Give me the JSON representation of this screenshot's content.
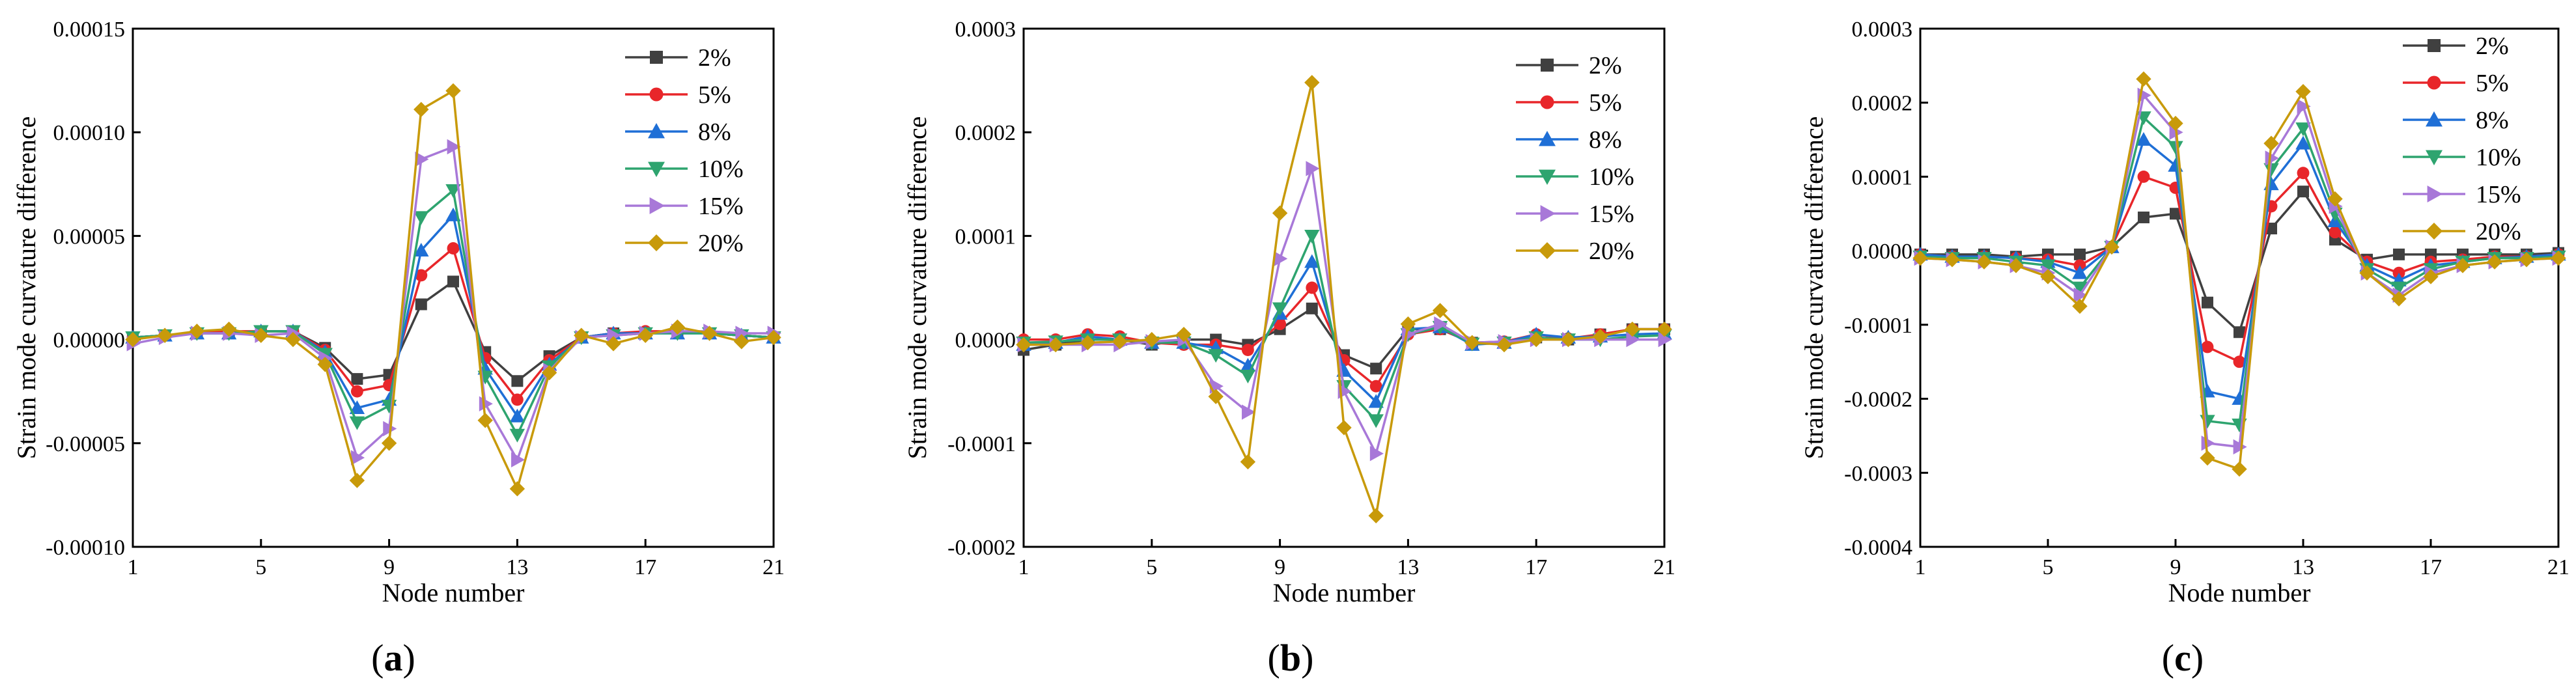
{
  "figure": {
    "panels": [
      "(a)",
      "(b)",
      "(c)"
    ]
  },
  "colors": {
    "2%": "#404040",
    "5%": "#e8262a",
    "8%": "#1f6fd6",
    "10%": "#2ea46f",
    "15%": "#a878d8",
    "20%": "#c89a0a"
  },
  "markers": {
    "2%": "square",
    "5%": "circle",
    "8%": "triangle-up",
    "10%": "triangle-down",
    "15%": "triangle-right",
    "20%": "diamond"
  },
  "chart_data": [
    {
      "type": "line",
      "panel_label": "(a)",
      "xlabel": "Node number",
      "ylabel": "Strain mode curvature difference",
      "xlim": [
        1,
        21
      ],
      "ylim": [
        -0.0001,
        0.00015
      ],
      "xticks": [
        1,
        5,
        9,
        13,
        17,
        21
      ],
      "yticks": [
        -0.0001,
        -5e-05,
        0,
        5e-05,
        0.0001,
        0.00015
      ],
      "ytick_labels": [
        "-0.00010",
        "-0.00005",
        "0.00000",
        "0.00005",
        "0.00010",
        "0.00015"
      ],
      "legend_position": "top-right",
      "x": [
        1,
        2,
        3,
        4,
        5,
        6,
        7,
        8,
        9,
        10,
        11,
        12,
        13,
        14,
        15,
        16,
        17,
        18,
        19,
        20,
        21
      ],
      "series": [
        {
          "name": "2%",
          "values": [
            1e-06,
            2e-06,
            3e-06,
            3e-06,
            4e-06,
            4e-06,
            -4e-06,
            -1.9e-05,
            -1.7e-05,
            1.7e-05,
            2.8e-05,
            -6e-06,
            -2e-05,
            -8e-06,
            1e-06,
            3e-06,
            3e-06,
            4e-06,
            3e-06,
            2e-06,
            1e-06
          ]
        },
        {
          "name": "5%",
          "values": [
            1e-06,
            2e-06,
            3e-06,
            4e-06,
            4e-06,
            4e-06,
            -5e-06,
            -2.5e-05,
            -2.2e-05,
            3.1e-05,
            4.4e-05,
            -9e-06,
            -2.9e-05,
            -1e-05,
            1e-06,
            3e-06,
            4e-06,
            4e-06,
            3e-06,
            2e-06,
            1e-06
          ]
        },
        {
          "name": "8%",
          "values": [
            1e-06,
            2e-06,
            3e-06,
            3e-06,
            4e-06,
            4e-06,
            -6e-06,
            -3.3e-05,
            -2.9e-05,
            4.3e-05,
            6e-05,
            -1.4e-05,
            -3.7e-05,
            -1.2e-05,
            1e-06,
            3e-06,
            3e-06,
            3e-06,
            3e-06,
            2e-06,
            1e-06
          ]
        },
        {
          "name": "10%",
          "values": [
            1e-06,
            2e-06,
            3e-06,
            3e-06,
            4e-06,
            4e-06,
            -7e-06,
            -4e-05,
            -3.2e-05,
            5.9e-05,
            7.2e-05,
            -1.8e-05,
            -4.6e-05,
            -1.3e-05,
            1e-06,
            2e-06,
            3e-06,
            3e-06,
            3e-06,
            2e-06,
            1e-06
          ]
        },
        {
          "name": "15%",
          "values": [
            -2e-06,
            1e-06,
            3e-06,
            3e-06,
            2e-06,
            3e-06,
            -9e-06,
            -5.7e-05,
            -4.3e-05,
            8.7e-05,
            9.3e-05,
            -3.1e-05,
            -5.8e-05,
            -1.5e-05,
            1e-06,
            2e-06,
            3e-06,
            4e-06,
            4e-06,
            3e-06,
            3e-06
          ]
        },
        {
          "name": "20%",
          "values": [
            0.0,
            2e-06,
            4e-06,
            5e-06,
            2e-06,
            0.0,
            -1.2e-05,
            -6.8e-05,
            -5e-05,
            0.000111,
            0.00012,
            -3.9e-05,
            -7.2e-05,
            -1.6e-05,
            2e-06,
            -2e-06,
            2e-06,
            6e-06,
            3e-06,
            -1e-06,
            1e-06
          ]
        }
      ]
    },
    {
      "type": "line",
      "panel_label": "(b)",
      "xlabel": "Node number",
      "ylabel": "Strain mode curvature difference",
      "xlim": [
        1,
        21
      ],
      "ylim": [
        -0.0002,
        0.0003
      ],
      "xticks": [
        1,
        5,
        9,
        13,
        17,
        21
      ],
      "yticks": [
        -0.0002,
        -0.0001,
        0,
        0.0001,
        0.0002,
        0.0003
      ],
      "ytick_labels": [
        "-0.0002",
        "-0.0001",
        "0.0000",
        "0.0001",
        "0.0002",
        "0.0003"
      ],
      "legend_position": "top-right",
      "x": [
        1,
        2,
        3,
        4,
        5,
        6,
        7,
        8,
        9,
        10,
        11,
        12,
        13,
        14,
        15,
        16,
        17,
        18,
        19,
        20,
        21
      ],
      "series": [
        {
          "name": "2%",
          "values": [
            -1e-05,
            -5e-06,
            0.0,
            0.0,
            -5e-06,
            0.0,
            0.0,
            -5e-06,
            1e-05,
            3e-05,
            -1.5e-05,
            -2.8e-05,
            1e-05,
            1e-05,
            -3e-06,
            -3e-06,
            2e-06,
            0.0,
            5e-06,
            1e-05,
            1e-05
          ]
        },
        {
          "name": "5%",
          "values": [
            0.0,
            0.0,
            5e-06,
            3e-06,
            -3e-06,
            -5e-06,
            -5e-06,
            -1e-05,
            1.5e-05,
            5e-05,
            -2e-05,
            -4.5e-05,
            5e-06,
            1e-05,
            -3e-06,
            -2e-06,
            5e-06,
            1e-06,
            5e-06,
            1e-05,
            1e-05
          ]
        },
        {
          "name": "8%",
          "values": [
            -5e-06,
            -3e-06,
            3e-06,
            0.0,
            -3e-06,
            -3e-06,
            -8e-06,
            -2.5e-05,
            2.5e-05,
            7.5e-05,
            -3e-05,
            -6e-05,
            1e-05,
            1.2e-05,
            -5e-06,
            -3e-06,
            5e-06,
            2e-06,
            3e-06,
            5e-06,
            6e-06
          ]
        },
        {
          "name": "10%",
          "values": [
            -3e-06,
            -2e-06,
            0.0,
            0.0,
            -3e-06,
            -3e-06,
            -1.5e-05,
            -3.5e-05,
            3e-05,
            0.0001,
            -4.5e-05,
            -7.8e-05,
            5e-06,
            1.2e-05,
            -4e-06,
            -3e-06,
            2e-06,
            0.0,
            0.0,
            3e-06,
            4e-06
          ]
        },
        {
          "name": "15%",
          "values": [
            -5e-06,
            -5e-06,
            -5e-06,
            -5e-06,
            -2e-06,
            0.0,
            -4.5e-05,
            -7e-05,
            7.8e-05,
            0.000165,
            -5e-05,
            -0.00011,
            5e-06,
            1.5e-05,
            -3e-06,
            -2e-06,
            0.0,
            0.0,
            0.0,
            0.0,
            0.0
          ]
        },
        {
          "name": "20%",
          "values": [
            -5e-06,
            -5e-06,
            -3e-06,
            -2e-06,
            0.0,
            5e-06,
            -5.5e-05,
            -0.000118,
            0.000122,
            0.000248,
            -8.5e-05,
            -0.00017,
            1.5e-05,
            2.8e-05,
            -3e-06,
            -5e-06,
            0.0,
            0.0,
            3e-06,
            1e-05,
            1e-05
          ]
        }
      ]
    },
    {
      "type": "line",
      "panel_label": "(c)",
      "xlabel": "Node number",
      "ylabel": "Strain mode curvature difference",
      "xlim": [
        1,
        21
      ],
      "ylim": [
        -0.0004,
        0.0003
      ],
      "xticks": [
        1,
        5,
        9,
        13,
        17,
        21
      ],
      "yticks": [
        -0.0004,
        -0.0003,
        -0.0002,
        -0.0001,
        0,
        0.0001,
        0.0002,
        0.0003
      ],
      "ytick_labels": [
        "-0.0004",
        "-0.0003",
        "-0.0002",
        "-0.0001",
        "0.0000",
        "0.0001",
        "0.0002",
        "0.0003"
      ],
      "legend_position": "top-right",
      "x": [
        1,
        2,
        3,
        4,
        5,
        6,
        7,
        8,
        9,
        10,
        11,
        12,
        13,
        14,
        15,
        16,
        17,
        18,
        19,
        20,
        21
      ],
      "series": [
        {
          "name": "2%",
          "values": [
            -5e-06,
            -5e-06,
            -5e-06,
            -8e-06,
            -5e-06,
            -5e-06,
            5e-06,
            4.5e-05,
            5e-05,
            -7e-05,
            -0.00011,
            3e-05,
            8e-05,
            1.5e-05,
            -1.2e-05,
            -5e-06,
            -5e-06,
            -5e-06,
            -5e-06,
            -5e-06,
            -3e-06
          ]
        },
        {
          "name": "5%",
          "values": [
            -5e-06,
            -8e-06,
            -8e-06,
            -1e-05,
            -1.2e-05,
            -2e-05,
            5e-06,
            0.0001,
            8.5e-05,
            -0.00013,
            -0.00015,
            6e-05,
            0.000105,
            2.5e-05,
            -1.5e-05,
            -3e-05,
            -1.5e-05,
            -1.2e-05,
            -8e-06,
            -8e-06,
            -5e-06
          ]
        },
        {
          "name": "8%",
          "values": [
            -5e-06,
            -8e-06,
            -8e-06,
            -1e-05,
            -1.5e-05,
            -3e-05,
            5e-06,
            0.00015,
            0.000115,
            -0.00019,
            -0.0002,
            9e-05,
            0.000145,
            4e-05,
            -2e-05,
            -4e-05,
            -2e-05,
            -1.5e-05,
            -1e-05,
            -8e-06,
            -5e-06
          ]
        },
        {
          "name": "10%",
          "values": [
            -8e-06,
            -1e-05,
            -1e-05,
            -1.5e-05,
            -2e-05,
            -5e-05,
            5e-06,
            0.00018,
            0.00014,
            -0.00023,
            -0.000235,
            0.00011,
            0.000165,
            5e-05,
            -2.5e-05,
            -5e-05,
            -2.5e-05,
            -1.5e-05,
            -1e-05,
            -1e-05,
            -8e-06
          ]
        },
        {
          "name": "15%",
          "values": [
            -1e-05,
            -1.2e-05,
            -1.5e-05,
            -2e-05,
            -3e-05,
            -6e-05,
            5e-06,
            0.00021,
            0.00016,
            -0.00026,
            -0.000265,
            0.000125,
            0.000195,
            6e-05,
            -3e-05,
            -6e-05,
            -3e-05,
            -2e-05,
            -1.5e-05,
            -1.2e-05,
            -1e-05
          ]
        },
        {
          "name": "20%",
          "values": [
            -1e-05,
            -1.2e-05,
            -1.5e-05,
            -2e-05,
            -3.5e-05,
            -7.5e-05,
            5e-06,
            0.000232,
            0.000172,
            -0.00028,
            -0.000295,
            0.000145,
            0.000215,
            7e-05,
            -3e-05,
            -6.5e-05,
            -3.5e-05,
            -2e-05,
            -1.5e-05,
            -1.2e-05,
            -1e-05
          ]
        }
      ]
    }
  ]
}
